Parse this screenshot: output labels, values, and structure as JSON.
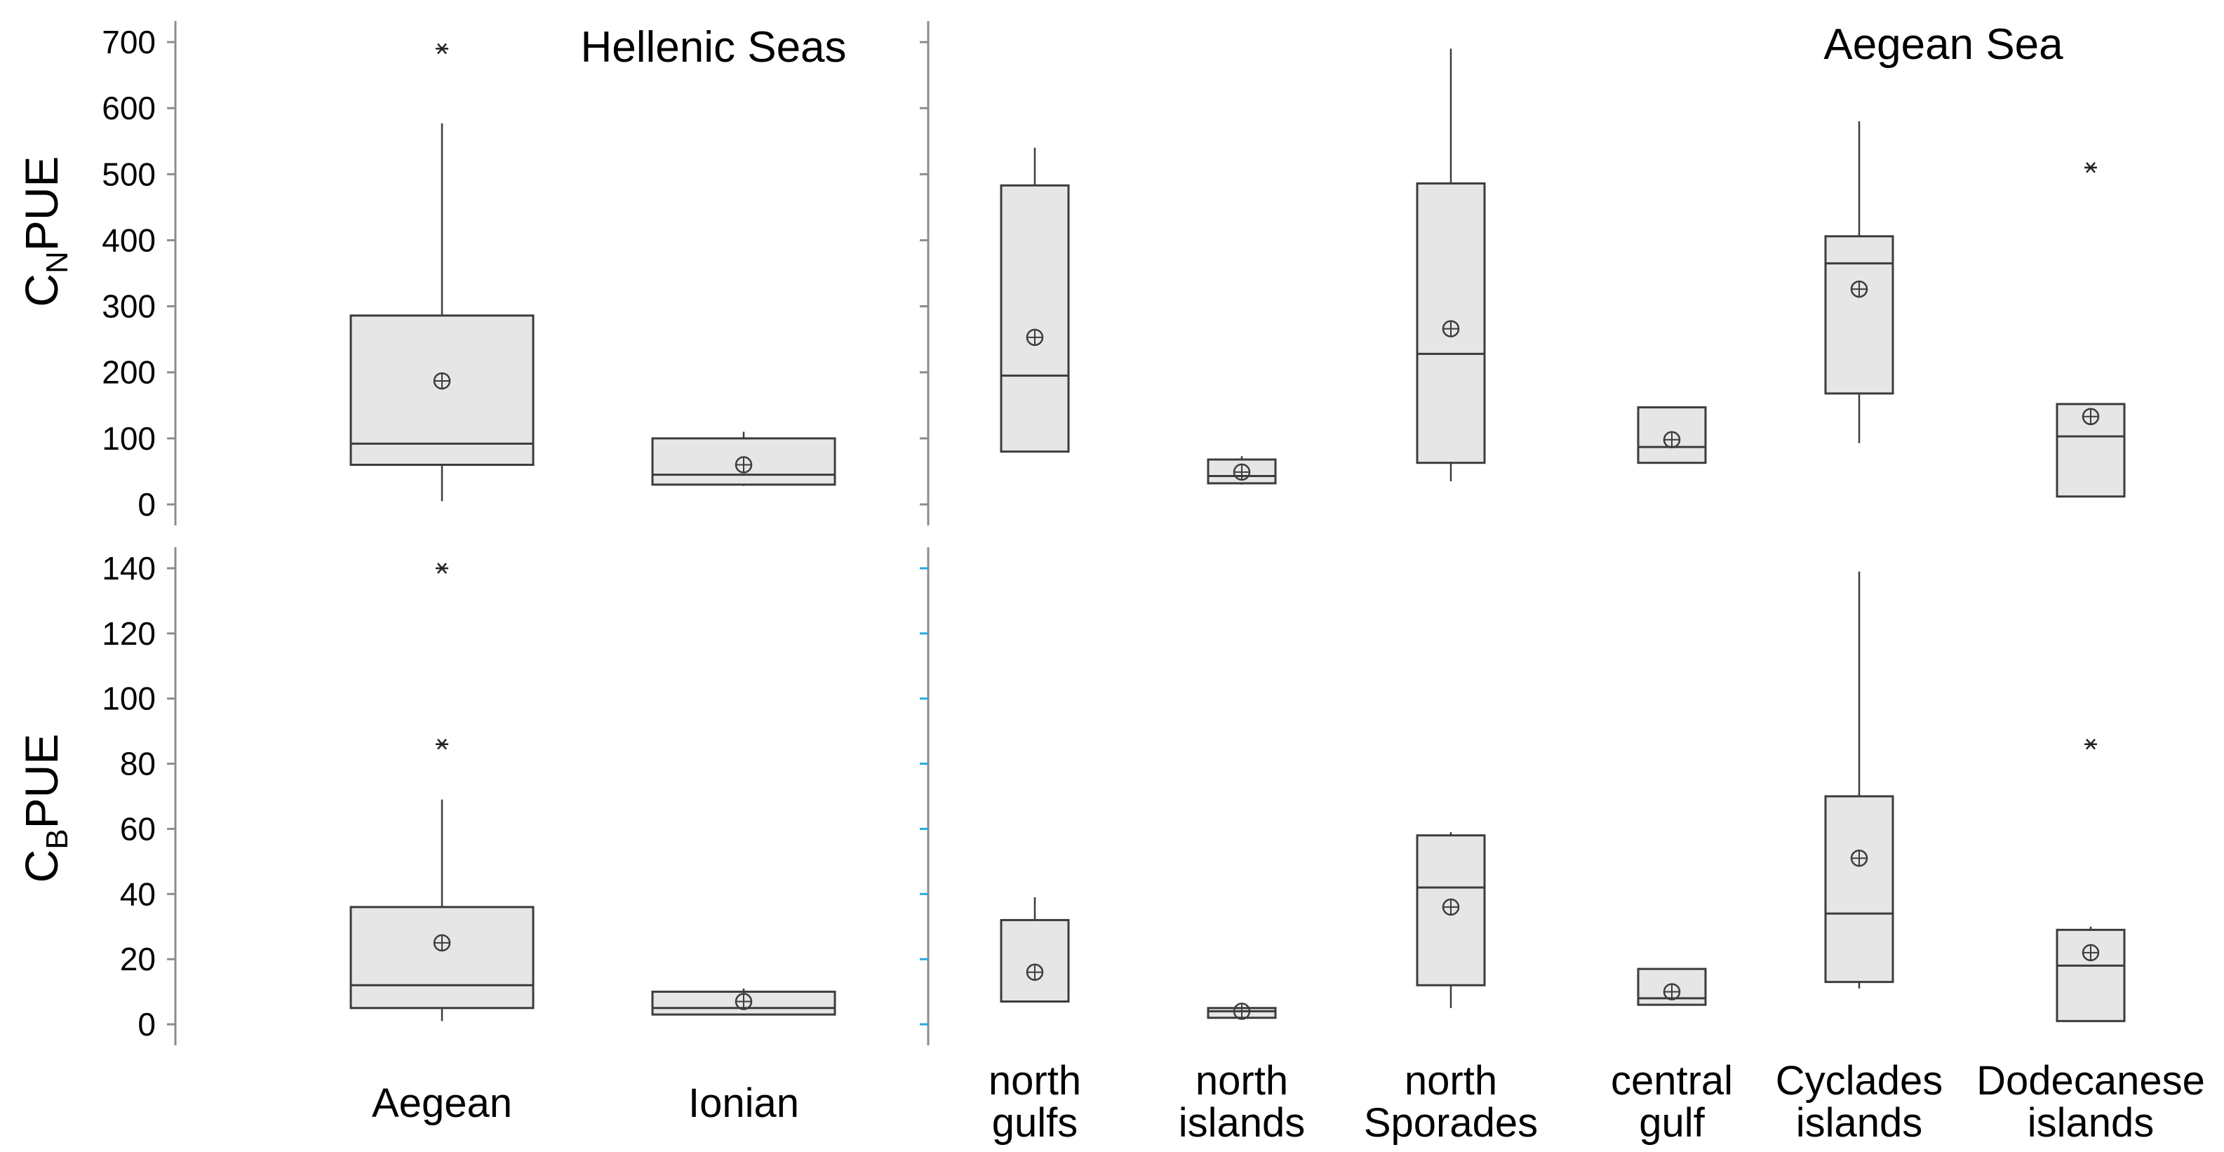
{
  "chart_data": [
    {
      "type": "box",
      "panel": "top-left",
      "title": "Hellenic Seas",
      "ylabel": {
        "main": "C",
        "sub": "N",
        "suffix": "PUE"
      },
      "ylim": [
        0,
        700
      ],
      "yticks": [
        0,
        100,
        200,
        300,
        400,
        500,
        600,
        700
      ],
      "categories": [
        "Aegean",
        "Ionian"
      ],
      "boxes": [
        {
          "category": "Aegean",
          "whisker_low": 5,
          "q1": 60,
          "median": 92,
          "q3": 286,
          "whisker_high": 577,
          "mean": 187,
          "outliers": [
            690
          ]
        },
        {
          "category": "Ionian",
          "whisker_low": 28,
          "q1": 30,
          "median": 45,
          "q3": 100,
          "whisker_high": 110,
          "mean": 60,
          "outliers": []
        }
      ]
    },
    {
      "type": "box",
      "panel": "top-right",
      "title": "Aegean Sea",
      "ylim": [
        0,
        700
      ],
      "categories": [
        "north gulfs",
        "north islands",
        "north Sporades",
        "central gulf",
        "Cyclades islands",
        "Dodecanese islands"
      ],
      "boxes": [
        {
          "category": "north gulfs",
          "whisker_low": 80,
          "q1": 80,
          "median": 195,
          "q3": 483,
          "whisker_high": 540,
          "mean": 253,
          "outliers": []
        },
        {
          "category": "north islands",
          "whisker_low": 30,
          "q1": 32,
          "median": 43,
          "q3": 68,
          "whisker_high": 73,
          "mean": 49,
          "outliers": []
        },
        {
          "category": "north Sporades",
          "whisker_low": 35,
          "q1": 63,
          "median": 228,
          "q3": 486,
          "whisker_high": 690,
          "mean": 266,
          "outliers": []
        },
        {
          "category": "central gulf",
          "whisker_low": 63,
          "q1": 63,
          "median": 87,
          "q3": 147,
          "whisker_high": 147,
          "mean": 98,
          "outliers": []
        },
        {
          "category": "Cyclades islands",
          "whisker_low": 93,
          "q1": 168,
          "median": 365,
          "q3": 406,
          "whisker_high": 580,
          "mean": 326,
          "outliers": []
        },
        {
          "category": "Dodecanese islands",
          "whisker_low": 12,
          "q1": 12,
          "median": 103,
          "q3": 152,
          "whisker_high": 152,
          "mean": 133,
          "outliers": [
            510
          ]
        }
      ]
    },
    {
      "type": "box",
      "panel": "bottom-left",
      "ylabel": {
        "main": "C",
        "sub": "B",
        "suffix": "PUE"
      },
      "ylim": [
        0,
        140
      ],
      "yticks": [
        0,
        20,
        40,
        60,
        80,
        100,
        120,
        140
      ],
      "categories": [
        "Aegean",
        "Ionian"
      ],
      "boxes": [
        {
          "category": "Aegean",
          "whisker_low": 1,
          "q1": 5,
          "median": 12,
          "q3": 36,
          "whisker_high": 69,
          "mean": 25,
          "outliers": [
            86,
            140
          ]
        },
        {
          "category": "Ionian",
          "whisker_low": 3,
          "q1": 3,
          "median": 5,
          "q3": 10,
          "whisker_high": 11,
          "mean": 7,
          "outliers": []
        }
      ]
    },
    {
      "type": "box",
      "panel": "bottom-right",
      "ylim": [
        0,
        140
      ],
      "categories": [
        "north gulfs",
        "north islands",
        "north Sporades",
        "central gulf",
        "Cyclades islands",
        "Dodecanese islands"
      ],
      "boxes": [
        {
          "category": "north gulfs",
          "whisker_low": 7,
          "q1": 7,
          "median": 7,
          "q3": 32,
          "whisker_high": 39,
          "mean": 16,
          "outliers": []
        },
        {
          "category": "north islands",
          "whisker_low": 2,
          "q1": 2,
          "median": 4,
          "q3": 5,
          "whisker_high": 5,
          "mean": 4,
          "outliers": []
        },
        {
          "category": "north Sporades",
          "whisker_low": 5,
          "q1": 12,
          "median": 42,
          "q3": 58,
          "whisker_high": 59,
          "mean": 36,
          "outliers": []
        },
        {
          "category": "central gulf",
          "whisker_low": 6,
          "q1": 6,
          "median": 8,
          "q3": 17,
          "whisker_high": 17,
          "mean": 10,
          "outliers": []
        },
        {
          "category": "Cyclades islands",
          "whisker_low": 11,
          "q1": 13,
          "median": 34,
          "q3": 70,
          "whisker_high": 139,
          "mean": 51,
          "outliers": []
        },
        {
          "category": "Dodecanese islands",
          "whisker_low": 1,
          "q1": 1,
          "median": 18,
          "q3": 29,
          "whisker_high": 30,
          "mean": 22,
          "outliers": [
            86
          ]
        }
      ]
    }
  ],
  "style": {
    "box_fill": "#e6e6e6",
    "box_stroke": "#3c3c3c",
    "axis_stroke": "#8c8c8c",
    "tick_marker_color": "#29a8e0"
  }
}
